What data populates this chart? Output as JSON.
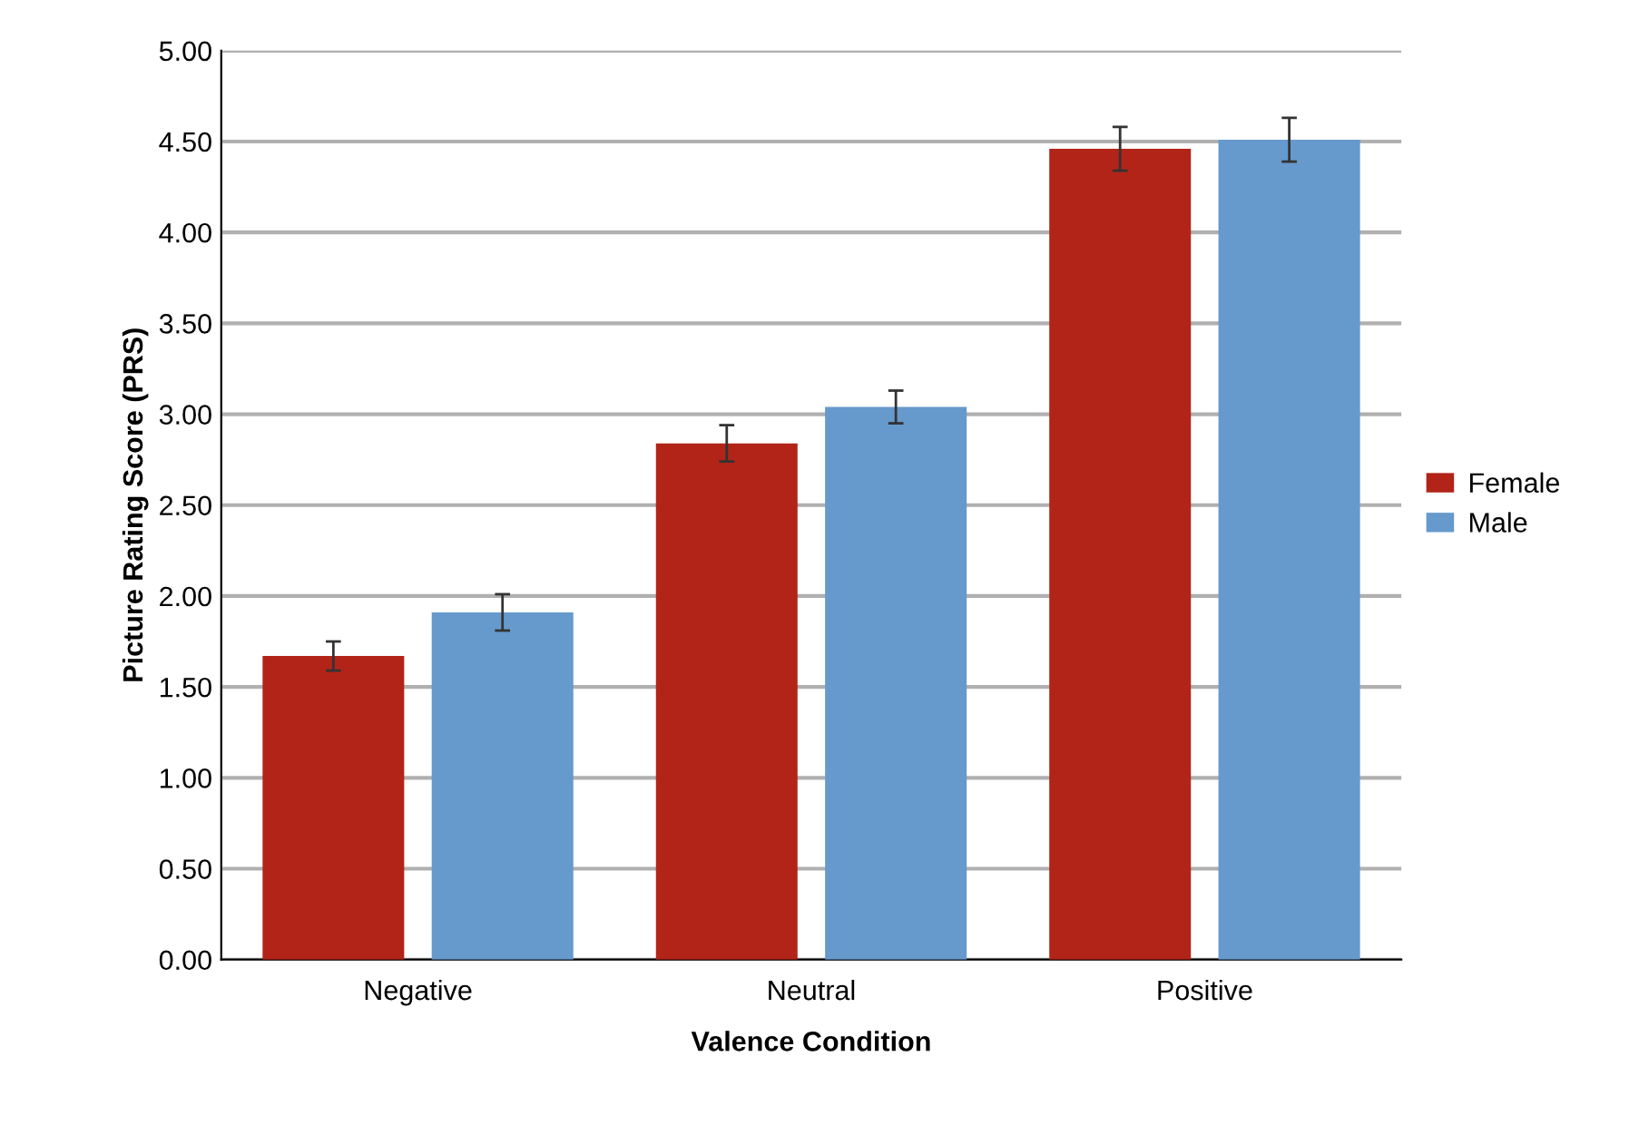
{
  "chart_data": {
    "type": "bar",
    "xlabel": "Valence Condition",
    "ylabel": "Picture Rating Score (PRS)",
    "categories": [
      "Negative",
      "Neutral",
      "Positive"
    ],
    "series": [
      {
        "name": "Female",
        "color": "#b22418",
        "values": [
          1.67,
          2.84,
          4.46
        ],
        "errors": [
          0.08,
          0.1,
          0.12
        ]
      },
      {
        "name": "Male",
        "color": "#6699cc",
        "values": [
          1.91,
          3.04,
          4.51
        ],
        "errors": [
          0.1,
          0.09,
          0.12
        ]
      }
    ],
    "ylim": [
      0,
      5
    ],
    "yticks": [
      {
        "value": 0,
        "label": "0.00"
      },
      {
        "value": 0.5,
        "label": "0.50"
      },
      {
        "value": 1,
        "label": "1.00"
      },
      {
        "value": 1.5,
        "label": "1.50"
      },
      {
        "value": 2,
        "label": "2.00"
      },
      {
        "value": 2.5,
        "label": "2.50"
      },
      {
        "value": 3,
        "label": "3.00"
      },
      {
        "value": 3.5,
        "label": "3.50"
      },
      {
        "value": 4,
        "label": "4.00"
      },
      {
        "value": 4.5,
        "label": "4.50"
      },
      {
        "value": 5,
        "label": "5.00"
      }
    ],
    "grid": "y",
    "legend": "right"
  }
}
